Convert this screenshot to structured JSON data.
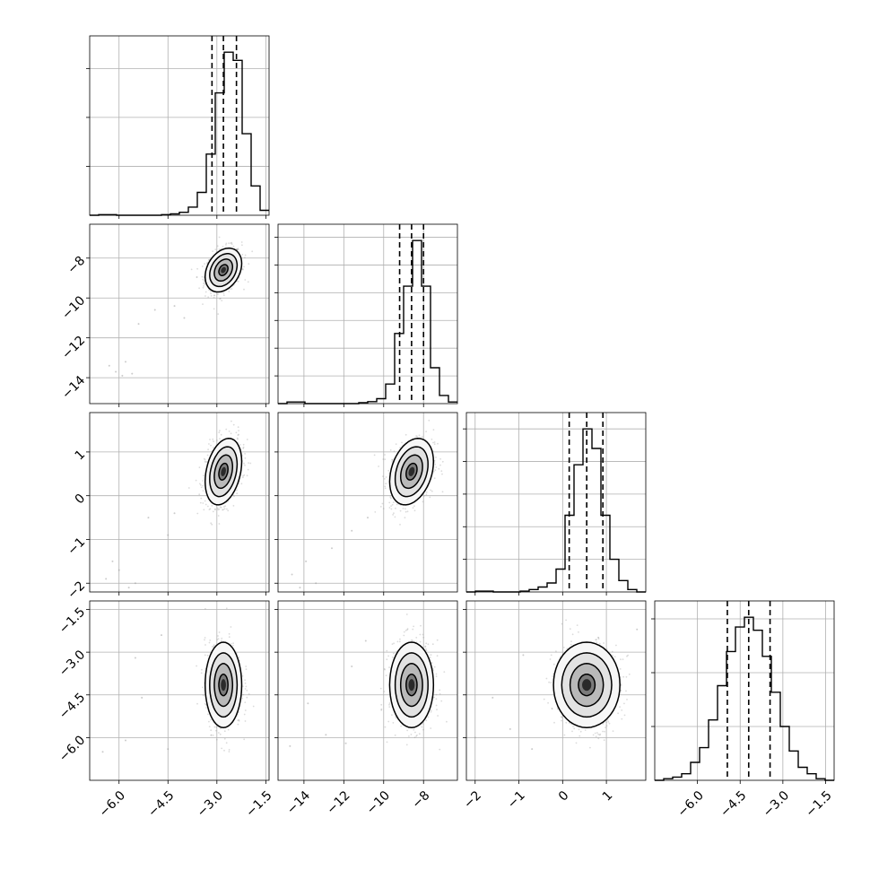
{
  "chart_data": {
    "type": "corner",
    "grid": true,
    "dims": [
      {
        "range": [
          -6.9,
          -1.4
        ],
        "ticks": [
          -6.0,
          -4.5,
          -3.0,
          -1.5
        ],
        "tick_labels": [
          "−6.0",
          "−4.5",
          "−3.0",
          "−1.5"
        ],
        "quantiles": [
          -3.15,
          -2.8,
          -2.4
        ],
        "hist_bins": [
          -6.9,
          -6.625,
          -6.35,
          -6.075,
          -5.8,
          -5.525,
          -5.25,
          -4.975,
          -4.7,
          -4.425,
          -4.15,
          -3.875,
          -3.6,
          -3.325,
          -3.05,
          -2.775,
          -2.5,
          -2.225,
          -1.95,
          -1.675,
          -1.4
        ],
        "hist_counts": [
          0.0,
          0.004,
          0.004,
          0.0,
          0.0,
          0.0,
          0.0,
          0.0,
          0.004,
          0.008,
          0.018,
          0.05,
          0.14,
          0.375,
          0.75,
          1.0,
          0.95,
          0.5,
          0.18,
          0.03
        ],
        "hist_yticks": [
          0.3,
          0.6,
          0.9
        ]
      },
      {
        "range": [
          -15.3,
          -6.3
        ],
        "ticks": [
          -14,
          -12,
          -10,
          -8
        ],
        "tick_labels": [
          "−14",
          "−12",
          "−10",
          "−8"
        ],
        "quantiles": [
          -9.2,
          -8.6,
          -8.0
        ],
        "hist_bins": [
          -15.3,
          -14.85,
          -14.4,
          -13.95,
          -13.5,
          -13.05,
          -12.6,
          -12.15,
          -11.7,
          -11.25,
          -10.8,
          -10.35,
          -9.9,
          -9.45,
          -9.0,
          -8.55,
          -8.1,
          -7.65,
          -7.2,
          -6.75,
          -6.3
        ],
        "hist_counts": [
          0.0,
          0.01,
          0.01,
          0.0,
          0.0,
          0.0,
          0.0,
          0.0,
          0.0,
          0.006,
          0.012,
          0.03,
          0.12,
          0.43,
          0.72,
          1.0,
          0.72,
          0.22,
          0.05,
          0.01
        ],
        "hist_yticks": [
          0.17,
          0.34,
          0.51,
          0.68,
          0.85,
          1.02
        ]
      },
      {
        "range": [
          -2.2,
          1.9
        ],
        "ticks": [
          -2,
          -1,
          0,
          1
        ],
        "tick_labels": [
          "−2",
          "−1",
          "0",
          "1"
        ],
        "quantiles": [
          0.15,
          0.55,
          0.92
        ],
        "hist_bins": [
          -2.2,
          -1.995,
          -1.79,
          -1.585,
          -1.38,
          -1.175,
          -0.97,
          -0.765,
          -0.56,
          -0.355,
          -0.15,
          0.055,
          0.26,
          0.465,
          0.67,
          0.875,
          1.08,
          1.285,
          1.49,
          1.695,
          1.9
        ],
        "hist_counts": [
          0.0,
          0.005,
          0.005,
          0.0,
          0.0,
          0.0,
          0.005,
          0.015,
          0.03,
          0.055,
          0.14,
          0.47,
          0.78,
          1.0,
          0.88,
          0.47,
          0.2,
          0.07,
          0.015,
          0.0
        ],
        "hist_yticks": [
          0.2,
          0.4,
          0.6,
          0.8,
          1.0
        ]
      },
      {
        "range": [
          -7.5,
          -1.2
        ],
        "ticks": [
          -6.0,
          -4.5,
          -3.0,
          -1.5
        ],
        "tick_labels": [
          "−6.0",
          "−4.5",
          "−3.0",
          "−1.5"
        ],
        "quantiles": [
          -4.95,
          -4.2,
          -3.45
        ],
        "hist_bins": [
          -7.5,
          -7.185,
          -6.87,
          -6.555,
          -6.24,
          -5.925,
          -5.61,
          -5.295,
          -4.98,
          -4.665,
          -4.35,
          -4.035,
          -3.72,
          -3.405,
          -3.09,
          -2.775,
          -2.46,
          -2.145,
          -1.83,
          -1.515,
          -1.2
        ],
        "hist_counts": [
          0.0,
          0.01,
          0.02,
          0.04,
          0.11,
          0.2,
          0.37,
          0.58,
          0.79,
          0.94,
          1.0,
          0.92,
          0.76,
          0.54,
          0.33,
          0.18,
          0.08,
          0.04,
          0.01,
          0.0
        ],
        "hist_yticks": [
          0.33,
          0.66,
          0.99
        ]
      }
    ],
    "pairs": [
      {
        "row": 1,
        "col": 0,
        "mean": [
          -2.8,
          -8.6
        ],
        "sd": [
          0.28,
          0.55
        ],
        "rho": 0.3,
        "outliers": [
          [
            -6.3,
            -13.4
          ],
          [
            -6.1,
            -13.7
          ],
          [
            -5.8,
            -13.2
          ],
          [
            -5.6,
            -13.8
          ],
          [
            -5.9,
            -13.9
          ],
          [
            -5.4,
            -11.3
          ],
          [
            -4.9,
            -10.6
          ],
          [
            -4.3,
            -10.4
          ],
          [
            -4.0,
            -11.0
          ]
        ]
      },
      {
        "row": 2,
        "col": 0,
        "mean": [
          -2.8,
          0.55
        ],
        "sd": [
          0.28,
          0.38
        ],
        "rho": 0.3,
        "outliers": [
          [
            -6.4,
            -1.9
          ],
          [
            -6.0,
            -1.7
          ],
          [
            -5.7,
            -2.1
          ],
          [
            -6.2,
            -1.5
          ],
          [
            -5.5,
            -2.0
          ],
          [
            -5.1,
            -0.5
          ],
          [
            -4.5,
            -0.9
          ],
          [
            -4.3,
            -0.4
          ]
        ]
      },
      {
        "row": 2,
        "col": 1,
        "mean": [
          -8.6,
          0.55
        ],
        "sd": [
          0.55,
          0.38
        ],
        "rho": 0.3,
        "outliers": [
          [
            -14.6,
            -1.8
          ],
          [
            -13.9,
            -1.5
          ],
          [
            -13.4,
            -2.0
          ],
          [
            -14.2,
            -2.1
          ],
          [
            -12.6,
            -1.2
          ],
          [
            -11.6,
            -0.8
          ],
          [
            -10.8,
            -0.5
          ]
        ]
      },
      {
        "row": 3,
        "col": 0,
        "mean": [
          -2.8,
          -4.15
        ],
        "sd": [
          0.28,
          0.75
        ],
        "rho": 0.0,
        "outliers": [
          [
            -6.5,
            -6.5
          ],
          [
            -5.8,
            -6.1
          ],
          [
            -5.3,
            -4.6
          ],
          [
            -5.5,
            -3.2
          ],
          [
            -4.5,
            -6.4
          ],
          [
            -4.7,
            -2.4
          ]
        ]
      },
      {
        "row": 3,
        "col": 1,
        "mean": [
          -8.6,
          -4.15
        ],
        "sd": [
          0.55,
          0.75
        ],
        "rho": 0.0,
        "outliers": [
          [
            -14.7,
            -6.3
          ],
          [
            -13.8,
            -4.8
          ],
          [
            -12.9,
            -5.9
          ],
          [
            -11.6,
            -3.5
          ],
          [
            -11.9,
            -6.2
          ],
          [
            -10.9,
            -2.6
          ]
        ]
      },
      {
        "row": 3,
        "col": 2,
        "mean": [
          0.55,
          -4.15
        ],
        "sd": [
          0.38,
          0.75
        ],
        "rho": 0.0,
        "outliers": [
          [
            -2.0,
            -6.0
          ],
          [
            -1.6,
            -4.6
          ],
          [
            -1.2,
            -5.7
          ],
          [
            -0.9,
            -3.1
          ],
          [
            -0.7,
            -6.4
          ],
          [
            1.7,
            -2.2
          ]
        ]
      }
    ],
    "contour_levels": [
      0.5,
      1.0,
      1.5,
      2.0
    ],
    "density_shades": [
      "#f7f7f7",
      "#e2e2e2",
      "#b9b9b9",
      "#7b7b7b",
      "#2a2a2a"
    ],
    "colors": {
      "line": "#000000",
      "grid": "#b0b0b0",
      "points": "#999999"
    }
  }
}
